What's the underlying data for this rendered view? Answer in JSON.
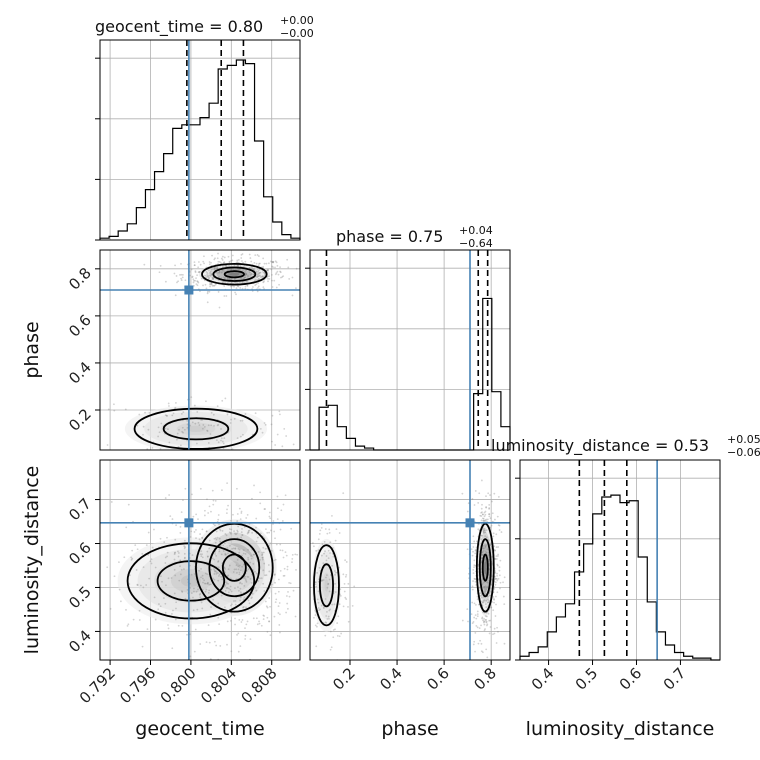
{
  "chart_data": {
    "type": "corner",
    "parameters": [
      "geocent_time",
      "phase",
      "luminosity_distance"
    ],
    "titles": [
      {
        "param": "geocent_time",
        "text": "geocent_time = 0.80",
        "sup": "+0.00",
        "sub": "−0.00"
      },
      {
        "param": "phase",
        "text": "phase = 0.75",
        "sup": "+0.04",
        "sub": "−0.64"
      },
      {
        "param": "luminosity_distance",
        "text": "luminosity_distance = 0.53",
        "sup": "+0.05",
        "sub": "−0.06"
      }
    ],
    "axis_labels": {
      "geocent_time": "geocent_time",
      "phase": "phase",
      "luminosity_distance": "luminosity_distance"
    },
    "ranges": {
      "geocent_time": [
        0.791,
        0.8108
      ],
      "phase": [
        0.03,
        0.88
      ],
      "luminosity_distance": [
        0.335,
        0.79
      ]
    },
    "ticks": {
      "geocent_time": [
        {
          "v": 0.792,
          "label": "0.792"
        },
        {
          "v": 0.796,
          "label": "0.796"
        },
        {
          "v": 0.8,
          "label": "0.800"
        },
        {
          "v": 0.804,
          "label": "0.804"
        },
        {
          "v": 0.808,
          "label": "0.808"
        }
      ],
      "phase": [
        {
          "v": 0.2,
          "label": "0.2"
        },
        {
          "v": 0.4,
          "label": "0.4"
        },
        {
          "v": 0.6,
          "label": "0.6"
        },
        {
          "v": 0.8,
          "label": "0.8"
        }
      ],
      "luminosity_distance": [
        {
          "v": 0.4,
          "label": "0.4"
        },
        {
          "v": 0.5,
          "label": "0.5"
        },
        {
          "v": 0.6,
          "label": "0.6"
        },
        {
          "v": 0.7,
          "label": "0.7"
        }
      ]
    },
    "truths": {
      "geocent_time": 0.7998,
      "phase": 0.71,
      "luminosity_distance": 0.647
    },
    "quantiles": {
      "geocent_time": [
        0.7996,
        0.803,
        0.8052
      ],
      "phase": [
        0.1,
        0.745,
        0.785
      ],
      "luminosity_distance": [
        0.47,
        0.527,
        0.578
      ]
    },
    "histograms": {
      "geocent_time": [
        0.01,
        0.02,
        0.05,
        0.09,
        0.18,
        0.28,
        0.38,
        0.48,
        0.62,
        0.64,
        0.64,
        0.68,
        0.76,
        0.95,
        0.97,
        1.0,
        0.98,
        0.55,
        0.24,
        0.1,
        0.03,
        0.01
      ],
      "phase": [
        0.0,
        0.22,
        0.23,
        0.12,
        0.06,
        0.02,
        0.01,
        0.0,
        0.0,
        0.0,
        0.0,
        0.0,
        0.0,
        0.0,
        0.0,
        0.0,
        0.0,
        0.0,
        0.29,
        0.78,
        0.3,
        0.12
      ],
      "luminosity_distance": [
        0.02,
        0.04,
        0.07,
        0.15,
        0.23,
        0.3,
        0.47,
        0.62,
        0.78,
        0.87,
        0.88,
        0.84,
        0.85,
        0.55,
        0.31,
        0.15,
        0.08,
        0.04,
        0.02,
        0.01,
        0.01,
        0.0
      ]
    },
    "hist_peaks": {
      "geocent_time": 0.95,
      "phase": 0.8,
      "luminosity_distance": 0.87
    },
    "posterior_modes": [
      {
        "pair": [
          "geocent_time",
          "phase"
        ],
        "clusters": [
          {
            "mx": 0.8043,
            "my": 0.777,
            "sx": 0.0016,
            "sy": 0.022,
            "w": 0.78
          },
          {
            "mx": 0.8005,
            "my": 0.12,
            "sx": 0.0032,
            "sy": 0.045,
            "w": 0.22
          }
        ]
      },
      {
        "pair": [
          "geocent_time",
          "luminosity_distance"
        ],
        "clusters": [
          {
            "mx": 0.8043,
            "my": 0.545,
            "sx": 0.0019,
            "sy": 0.05,
            "w": 0.72
          },
          {
            "mx": 0.8,
            "my": 0.515,
            "sx": 0.0033,
            "sy": 0.045,
            "w": 0.28
          }
        ]
      },
      {
        "pair": [
          "phase",
          "luminosity_distance"
        ],
        "clusters": [
          {
            "mx": 0.775,
            "my": 0.545,
            "sx": 0.018,
            "sy": 0.05,
            "w": 0.78
          },
          {
            "mx": 0.1,
            "my": 0.505,
            "sx": 0.028,
            "sy": 0.048,
            "w": 0.22
          }
        ]
      }
    ],
    "colors": {
      "truth": "#4682b4",
      "contour": "#000000",
      "scatter": "#808080",
      "grid": "#b0b0b0"
    },
    "grid": true
  }
}
